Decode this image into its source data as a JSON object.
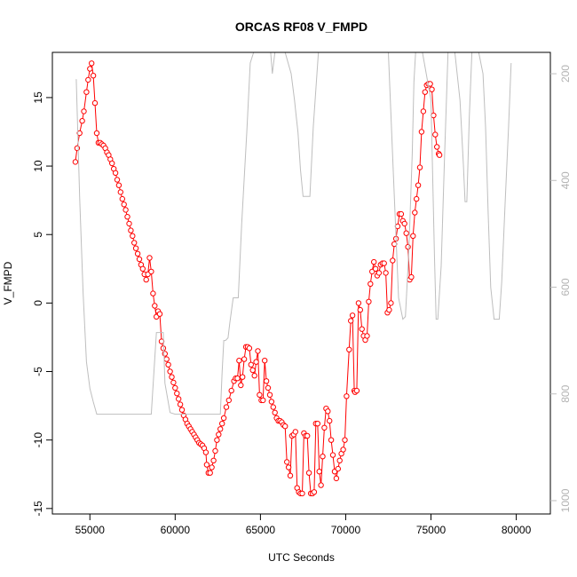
{
  "chart_data": {
    "type": "line",
    "title": "ORCAS RF08 V_FMPD",
    "xlabel": "UTC Seconds",
    "ylabel": "V_FMPD",
    "xlim": [
      52800,
      82000
    ],
    "ylim": [
      -15.4,
      18.3
    ],
    "x_ticks": [
      "55000",
      "60000",
      "65000",
      "70000",
      "75000",
      "80000"
    ],
    "y_ticks": [
      "-15",
      "-10",
      "-5",
      "0",
      "5",
      "10",
      "15"
    ],
    "right_axis": {
      "ticks": [
        "200",
        "400",
        "600",
        "800",
        "1000"
      ],
      "lim": [
        1025,
        160
      ],
      "color": "#bebebe"
    },
    "grid": false,
    "legend": "none",
    "series": [
      {
        "style": "points-lines",
        "color": "#ff0000",
        "points": [
          [
            54150,
            10.3
          ],
          [
            54250,
            11.3
          ],
          [
            54400,
            12.4
          ],
          [
            54550,
            13.3
          ],
          [
            54650,
            14.0
          ],
          [
            54800,
            15.4
          ],
          [
            54900,
            16.3
          ],
          [
            55000,
            17.1
          ],
          [
            55100,
            17.5
          ],
          [
            55200,
            16.6
          ],
          [
            55300,
            14.6
          ],
          [
            55400,
            12.4
          ],
          [
            55500,
            11.7
          ],
          [
            55600,
            11.7
          ],
          [
            55700,
            11.6
          ],
          [
            55800,
            11.5
          ],
          [
            55900,
            11.3
          ],
          [
            56000,
            11.0
          ],
          [
            56100,
            10.8
          ],
          [
            56200,
            10.5
          ],
          [
            56300,
            10.2
          ],
          [
            56400,
            9.8
          ],
          [
            56500,
            9.5
          ],
          [
            56600,
            9.0
          ],
          [
            56700,
            8.6
          ],
          [
            56800,
            8.1
          ],
          [
            56900,
            7.6
          ],
          [
            57000,
            7.2
          ],
          [
            57100,
            6.8
          ],
          [
            57200,
            6.3
          ],
          [
            57300,
            5.8
          ],
          [
            57400,
            5.3
          ],
          [
            57500,
            4.9
          ],
          [
            57600,
            4.4
          ],
          [
            57700,
            4.0
          ],
          [
            57800,
            3.6
          ],
          [
            57900,
            3.2
          ],
          [
            58000,
            2.8
          ],
          [
            58100,
            2.5
          ],
          [
            58200,
            2.1
          ],
          [
            58300,
            1.7
          ],
          [
            58400,
            2.1
          ],
          [
            58500,
            3.3
          ],
          [
            58600,
            2.3
          ],
          [
            58700,
            0.7
          ],
          [
            58800,
            -0.2
          ],
          [
            58900,
            -1.0
          ],
          [
            59000,
            -0.6
          ],
          [
            59100,
            -0.8
          ],
          [
            59200,
            -2.8
          ],
          [
            59300,
            -3.3
          ],
          [
            59400,
            -3.7
          ],
          [
            59500,
            -4.1
          ],
          [
            59600,
            -4.5
          ],
          [
            59700,
            -5.0
          ],
          [
            59800,
            -5.4
          ],
          [
            59900,
            -5.8
          ],
          [
            60000,
            -6.2
          ],
          [
            60100,
            -6.6
          ],
          [
            60200,
            -7.0
          ],
          [
            60300,
            -7.4
          ],
          [
            60400,
            -7.8
          ],
          [
            60500,
            -8.2
          ],
          [
            60600,
            -8.5
          ],
          [
            60700,
            -8.8
          ],
          [
            60800,
            -9.0
          ],
          [
            60900,
            -9.2
          ],
          [
            61000,
            -9.4
          ],
          [
            61100,
            -9.6
          ],
          [
            61200,
            -9.8
          ],
          [
            61300,
            -10.0
          ],
          [
            61400,
            -10.2
          ],
          [
            61500,
            -10.3
          ],
          [
            61600,
            -10.4
          ],
          [
            61700,
            -10.6
          ],
          [
            61800,
            -10.9
          ],
          [
            61850,
            -11.8
          ],
          [
            61950,
            -12.4
          ],
          [
            62050,
            -12.4
          ],
          [
            62150,
            -12.0
          ],
          [
            62250,
            -11.5
          ],
          [
            62350,
            -10.8
          ],
          [
            62450,
            -10.0
          ],
          [
            62550,
            -9.6
          ],
          [
            62650,
            -9.2
          ],
          [
            62750,
            -8.8
          ],
          [
            62850,
            -8.4
          ],
          [
            63000,
            -7.6
          ],
          [
            63150,
            -7.1
          ],
          [
            63300,
            -6.4
          ],
          [
            63450,
            -5.7
          ],
          [
            63550,
            -5.5
          ],
          [
            63650,
            -5.5
          ],
          [
            63750,
            -4.2
          ],
          [
            63850,
            -6.0
          ],
          [
            63950,
            -5.4
          ],
          [
            64050,
            -4.1
          ],
          [
            64150,
            -3.2
          ],
          [
            64250,
            -3.2
          ],
          [
            64350,
            -3.3
          ],
          [
            64450,
            -4.5
          ],
          [
            64550,
            -4.9
          ],
          [
            64650,
            -5.3
          ],
          [
            64750,
            -4.3
          ],
          [
            64850,
            -3.5
          ],
          [
            64950,
            -6.7
          ],
          [
            65050,
            -7.1
          ],
          [
            65150,
            -7.1
          ],
          [
            65250,
            -4.2
          ],
          [
            65350,
            -5.7
          ],
          [
            65450,
            -6.2
          ],
          [
            65550,
            -6.7
          ],
          [
            65650,
            -7.2
          ],
          [
            65750,
            -7.6
          ],
          [
            65850,
            -8.0
          ],
          [
            65950,
            -8.4
          ],
          [
            66050,
            -8.6
          ],
          [
            66150,
            -8.6
          ],
          [
            66250,
            -8.7
          ],
          [
            66350,
            -8.9
          ],
          [
            66450,
            -9.0
          ],
          [
            66550,
            -11.6
          ],
          [
            66650,
            -12.0
          ],
          [
            66750,
            -12.6
          ],
          [
            66850,
            -9.7
          ],
          [
            66950,
            -9.6
          ],
          [
            67050,
            -9.4
          ],
          [
            67150,
            -13.5
          ],
          [
            67250,
            -13.8
          ],
          [
            67350,
            -13.9
          ],
          [
            67450,
            -13.9
          ],
          [
            67550,
            -9.5
          ],
          [
            67650,
            -9.7
          ],
          [
            67750,
            -9.7
          ],
          [
            67850,
            -12.4
          ],
          [
            67950,
            -13.9
          ],
          [
            68050,
            -13.9
          ],
          [
            68150,
            -13.8
          ],
          [
            68250,
            -8.8
          ],
          [
            68350,
            -8.8
          ],
          [
            68450,
            -12.3
          ],
          [
            68550,
            -13.3
          ],
          [
            68650,
            -11.2
          ],
          [
            68750,
            -9.1
          ],
          [
            68850,
            -7.7
          ],
          [
            68950,
            -7.9
          ],
          [
            69050,
            -8.6
          ],
          [
            69150,
            -10.0
          ],
          [
            69250,
            -11.1
          ],
          [
            69350,
            -12.3
          ],
          [
            69450,
            -12.8
          ],
          [
            69550,
            -12.1
          ],
          [
            69650,
            -11.5
          ],
          [
            69750,
            -11.0
          ],
          [
            69850,
            -10.7
          ],
          [
            69950,
            -10.0
          ],
          [
            70050,
            -6.8
          ],
          [
            70200,
            -3.4
          ],
          [
            70300,
            -1.3
          ],
          [
            70400,
            -0.9
          ],
          [
            70500,
            -6.4
          ],
          [
            70550,
            -6.5
          ],
          [
            70650,
            -6.4
          ],
          [
            70750,
            0.0
          ],
          [
            70850,
            -0.5
          ],
          [
            70950,
            -1.9
          ],
          [
            71050,
            -2.4
          ],
          [
            71150,
            -2.7
          ],
          [
            71250,
            -2.4
          ],
          [
            71350,
            0.1
          ],
          [
            71450,
            1.4
          ],
          [
            71550,
            2.3
          ],
          [
            71650,
            3.0
          ],
          [
            71750,
            2.5
          ],
          [
            71850,
            2.0
          ],
          [
            71950,
            2.2
          ],
          [
            72050,
            2.8
          ],
          [
            72150,
            2.9
          ],
          [
            72250,
            2.9
          ],
          [
            72350,
            2.2
          ],
          [
            72450,
            -0.7
          ],
          [
            72550,
            -0.5
          ],
          [
            72650,
            0.0
          ],
          [
            72750,
            3.1
          ],
          [
            72850,
            4.3
          ],
          [
            72950,
            4.7
          ],
          [
            73050,
            5.6
          ],
          [
            73150,
            6.5
          ],
          [
            73250,
            6.5
          ],
          [
            73350,
            6.0
          ],
          [
            73450,
            5.8
          ],
          [
            73550,
            5.1
          ],
          [
            73650,
            4.1
          ],
          [
            73750,
            1.7
          ],
          [
            73850,
            1.9
          ],
          [
            73950,
            4.9
          ],
          [
            74050,
            6.6
          ],
          [
            74150,
            7.6
          ],
          [
            74250,
            8.6
          ],
          [
            74350,
            9.9
          ],
          [
            74450,
            12.5
          ],
          [
            74550,
            14.0
          ],
          [
            74650,
            15.4
          ],
          [
            74750,
            15.9
          ],
          [
            74850,
            16.0
          ],
          [
            74950,
            16.0
          ],
          [
            75050,
            15.6
          ],
          [
            75150,
            13.7
          ],
          [
            75250,
            12.3
          ],
          [
            75350,
            11.4
          ],
          [
            75450,
            10.9
          ],
          [
            75500,
            10.8
          ]
        ]
      },
      {
        "style": "line",
        "color": "#bebebe",
        "axis": "right",
        "points": [
          [
            54200,
            210
          ],
          [
            54400,
            430
          ],
          [
            54600,
            610
          ],
          [
            54800,
            740
          ],
          [
            55000,
            790
          ],
          [
            55200,
            815
          ],
          [
            55400,
            838
          ],
          [
            55600,
            838
          ],
          [
            57000,
            838
          ],
          [
            58100,
            838
          ],
          [
            58200,
            838
          ],
          [
            58600,
            838
          ],
          [
            58900,
            685
          ],
          [
            59300,
            685
          ],
          [
            59400,
            780
          ],
          [
            59700,
            835
          ],
          [
            60000,
            838
          ],
          [
            61000,
            838
          ],
          [
            62000,
            838
          ],
          [
            62650,
            838
          ],
          [
            62750,
            760
          ],
          [
            62850,
            700
          ],
          [
            62950,
            700
          ],
          [
            63100,
            695
          ],
          [
            63200,
            668
          ],
          [
            63400,
            620
          ],
          [
            63500,
            620
          ],
          [
            63700,
            620
          ],
          [
            63900,
            480
          ],
          [
            64200,
            310
          ],
          [
            64400,
            180
          ],
          [
            64600,
            160
          ],
          [
            65600,
            160
          ],
          [
            65700,
            200
          ],
          [
            65850,
            160
          ],
          [
            66450,
            160
          ],
          [
            66800,
            200
          ],
          [
            67000,
            250
          ],
          [
            67100,
            280
          ],
          [
            67200,
            310
          ],
          [
            67350,
            380
          ],
          [
            67500,
            430
          ],
          [
            67900,
            430
          ],
          [
            68100,
            300
          ],
          [
            68400,
            160
          ],
          [
            72500,
            160
          ],
          [
            72800,
            390
          ],
          [
            73100,
            620
          ],
          [
            73350,
            660
          ],
          [
            73500,
            655
          ],
          [
            73700,
            535
          ],
          [
            73900,
            350
          ],
          [
            74000,
            215
          ],
          [
            74100,
            160
          ],
          [
            74500,
            160
          ],
          [
            75000,
            250
          ],
          [
            75200,
            540
          ],
          [
            75300,
            660
          ],
          [
            75400,
            660
          ],
          [
            75600,
            560
          ],
          [
            75800,
            350
          ],
          [
            76000,
            160
          ],
          [
            76400,
            160
          ],
          [
            76700,
            250
          ],
          [
            76900,
            370
          ],
          [
            77000,
            440
          ],
          [
            77100,
            440
          ],
          [
            77250,
            280
          ],
          [
            77400,
            160
          ],
          [
            77800,
            160
          ],
          [
            78050,
            200
          ],
          [
            78200,
            300
          ],
          [
            78350,
            460
          ],
          [
            78500,
            600
          ],
          [
            78700,
            660
          ],
          [
            79000,
            660
          ],
          [
            79150,
            590
          ],
          [
            79350,
            440
          ],
          [
            79550,
            300
          ],
          [
            79700,
            180
          ]
        ]
      }
    ]
  }
}
